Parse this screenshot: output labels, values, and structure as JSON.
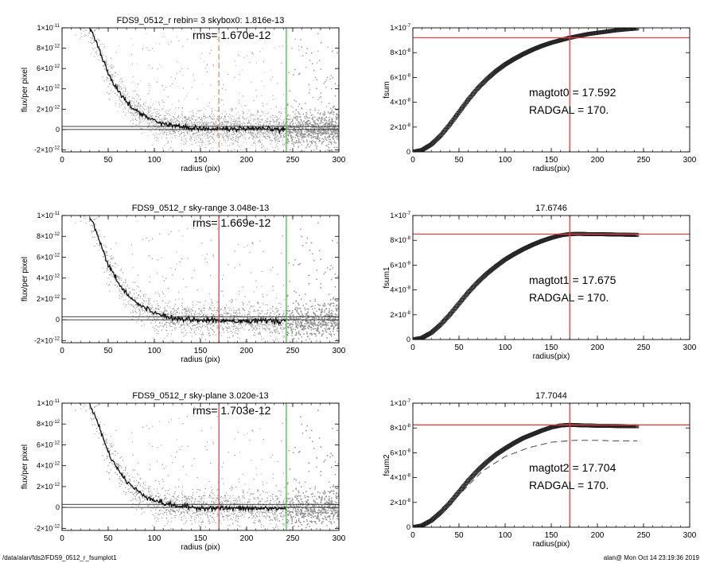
{
  "footer": {
    "path": "/data/alan/fds2/FDS9_0512_r_fsumplot1",
    "stamp": "alan@  Mon Oct 14 23:19:36 2019"
  },
  "colors": {
    "red": "#e24343",
    "green": "#2ecc2e",
    "orange": "#e8923a",
    "scatter": "#8c8c8c",
    "profile": "#111111"
  },
  "chart_data": [
    {
      "type": "scatter",
      "title": "FDS9_0512_r rebin= 3    skybox0:  1.816e-13",
      "annotation": "rms= 1.670e-12",
      "xlabel": "radius (pix)",
      "ylabel": "flux/per pixel",
      "xlim": [
        0,
        300
      ],
      "ylim": [
        -2.2e-12,
        1e-11
      ],
      "xticks": [
        0,
        50,
        100,
        150,
        200,
        250,
        300
      ],
      "yticks": [
        {
          "v": 1e-11,
          "m": "1",
          "e": "-11"
        },
        {
          "v": 8e-12,
          "m": "8",
          "e": "-12"
        },
        {
          "v": 6e-12,
          "m": "6",
          "e": "-12"
        },
        {
          "v": 4e-12,
          "m": "4",
          "e": "-12"
        },
        {
          "v": 2e-12,
          "m": "2",
          "e": "-12"
        },
        {
          "v": 0,
          "m": "0",
          "e": ""
        },
        {
          "v": -2e-12,
          "m": "-2",
          "e": "-12"
        }
      ],
      "profile": [
        [
          30,
          1e-11
        ],
        [
          40,
          8e-12
        ],
        [
          50,
          5.5e-12
        ],
        [
          60,
          3.9e-12
        ],
        [
          70,
          2.7e-12
        ],
        [
          80,
          1.9e-12
        ],
        [
          90,
          1.3e-12
        ],
        [
          100,
          9e-13
        ],
        [
          110,
          6e-13
        ],
        [
          120,
          4e-13
        ],
        [
          130,
          2.5e-13
        ],
        [
          140,
          1.6e-13
        ],
        [
          150,
          1e-13
        ],
        [
          170,
          6e-14
        ],
        [
          200,
          4e-14
        ],
        [
          243,
          3e-14
        ]
      ],
      "hlines": [
        3e-13,
        0
      ],
      "vlines": [
        {
          "x": 170,
          "color": "orange",
          "dashed": true
        },
        {
          "x": 243,
          "color": "green",
          "dashed": false
        }
      ]
    },
    {
      "type": "scatter",
      "title": "FDS9_0512_r sky-range  3.048e-13",
      "annotation": "rms= 1.669e-12",
      "xlabel": "radius (pix)",
      "ylabel": "flux/per pixel",
      "xlim": [
        0,
        300
      ],
      "ylim": [
        -2.2e-12,
        1e-11
      ],
      "xticks": [
        0,
        50,
        100,
        150,
        200,
        250,
        300
      ],
      "yticks": [
        {
          "v": 1e-11,
          "m": "1",
          "e": "-11"
        },
        {
          "v": 8e-12,
          "m": "8",
          "e": "-12"
        },
        {
          "v": 6e-12,
          "m": "6",
          "e": "-12"
        },
        {
          "v": 4e-12,
          "m": "4",
          "e": "-12"
        },
        {
          "v": 2e-12,
          "m": "2",
          "e": "-12"
        },
        {
          "v": 0,
          "m": "0",
          "e": ""
        },
        {
          "v": -2e-12,
          "m": "-2",
          "e": "-12"
        }
      ],
      "profile": [
        [
          30,
          1e-11
        ],
        [
          40,
          7.8e-12
        ],
        [
          50,
          5.3e-12
        ],
        [
          60,
          3.7e-12
        ],
        [
          70,
          2.5e-12
        ],
        [
          80,
          1.7e-12
        ],
        [
          90,
          1.1e-12
        ],
        [
          100,
          7e-13
        ],
        [
          110,
          4e-13
        ],
        [
          120,
          2e-13
        ],
        [
          130,
          1e-13
        ],
        [
          140,
          2e-14
        ],
        [
          150,
          -4e-14
        ],
        [
          170,
          -8e-14
        ],
        [
          200,
          -1e-13
        ],
        [
          243,
          -1.1e-13
        ]
      ],
      "hlines": [
        3e-13,
        0
      ],
      "vlines": [
        {
          "x": 170,
          "color": "red",
          "dashed": false
        },
        {
          "x": 243,
          "color": "green",
          "dashed": false
        }
      ]
    },
    {
      "type": "scatter",
      "title": "FDS9_0512_r sky-plane  3.020e-13",
      "annotation": "rms= 1.703e-12",
      "xlabel": "radius (pix)",
      "ylabel": "flux/per pixel",
      "xlim": [
        0,
        300
      ],
      "ylim": [
        -2.2e-12,
        1e-11
      ],
      "xticks": [
        0,
        50,
        100,
        150,
        200,
        250,
        300
      ],
      "yticks": [
        {
          "v": 1e-11,
          "m": "1",
          "e": "-11"
        },
        {
          "v": 8e-12,
          "m": "8",
          "e": "-12"
        },
        {
          "v": 6e-12,
          "m": "6",
          "e": "-12"
        },
        {
          "v": 4e-12,
          "m": "4",
          "e": "-12"
        },
        {
          "v": 2e-12,
          "m": "2",
          "e": "-12"
        },
        {
          "v": 0,
          "m": "0",
          "e": ""
        },
        {
          "v": -2e-12,
          "m": "-2",
          "e": "-12"
        }
      ],
      "profile": [
        [
          30,
          1e-11
        ],
        [
          40,
          7.8e-12
        ],
        [
          50,
          5.3e-12
        ],
        [
          60,
          3.7e-12
        ],
        [
          70,
          2.5e-12
        ],
        [
          80,
          1.7e-12
        ],
        [
          90,
          1.1e-12
        ],
        [
          100,
          7e-13
        ],
        [
          110,
          4e-13
        ],
        [
          120,
          2e-13
        ],
        [
          130,
          1e-13
        ],
        [
          140,
          2e-14
        ],
        [
          150,
          -4e-14
        ],
        [
          170,
          -8e-14
        ],
        [
          200,
          -1e-13
        ],
        [
          243,
          -1.1e-13
        ]
      ],
      "hlines": [
        3e-13,
        0
      ],
      "vlines": [
        {
          "x": 170,
          "color": "red",
          "dashed": false
        },
        {
          "x": 243,
          "color": "green",
          "dashed": false
        }
      ]
    },
    {
      "type": "line",
      "title": "",
      "xlabel": "radius(pix)",
      "ylabel": "fsum",
      "xlim": [
        0,
        300
      ],
      "ylim": [
        0,
        1e-07
      ],
      "xticks": [
        0,
        50,
        100,
        150,
        200,
        250,
        300
      ],
      "yticks": [
        {
          "v": 1e-07,
          "m": "1",
          "e": "-7"
        },
        {
          "v": 8e-08,
          "m": "8",
          "e": "-8"
        },
        {
          "v": 6e-08,
          "m": "6",
          "e": "-8"
        },
        {
          "v": 4e-08,
          "m": "4",
          "e": "-8"
        },
        {
          "v": 2e-08,
          "m": "2",
          "e": "-8"
        },
        {
          "v": 0,
          "m": "0",
          "e": ""
        }
      ],
      "curve": [
        [
          0,
          0
        ],
        [
          10,
          1.5e-09
        ],
        [
          20,
          6e-09
        ],
        [
          30,
          1.3e-08
        ],
        [
          40,
          2.2e-08
        ],
        [
          50,
          3.2e-08
        ],
        [
          60,
          4.2e-08
        ],
        [
          70,
          5.1e-08
        ],
        [
          80,
          5.85e-08
        ],
        [
          90,
          6.5e-08
        ],
        [
          100,
          7.05e-08
        ],
        [
          110,
          7.5e-08
        ],
        [
          120,
          7.9e-08
        ],
        [
          130,
          8.25e-08
        ],
        [
          140,
          8.55e-08
        ],
        [
          150,
          8.8e-08
        ],
        [
          160,
          9e-08
        ],
        [
          170,
          9.2e-08
        ],
        [
          180,
          9.35e-08
        ],
        [
          190,
          9.5e-08
        ],
        [
          200,
          9.6e-08
        ],
        [
          210,
          9.7e-08
        ],
        [
          220,
          9.8e-08
        ],
        [
          230,
          9.87e-08
        ],
        [
          243,
          9.95e-08
        ]
      ],
      "dashed_curve": [],
      "hline": 9.2e-08,
      "vline": 170,
      "text1": "magtot0 =  17.592",
      "text2": "RADGAL =    170."
    },
    {
      "type": "line",
      "title": "17.6746",
      "xlabel": "radius(pix)",
      "ylabel": "fsum1",
      "xlim": [
        0,
        300
      ],
      "ylim": [
        0,
        1e-07
      ],
      "xticks": [
        0,
        50,
        100,
        150,
        200,
        250,
        300
      ],
      "yticks": [
        {
          "v": 1e-07,
          "m": "1",
          "e": "-7"
        },
        {
          "v": 8e-08,
          "m": "8",
          "e": "-8"
        },
        {
          "v": 6e-08,
          "m": "6",
          "e": "-8"
        },
        {
          "v": 4e-08,
          "m": "4",
          "e": "-8"
        },
        {
          "v": 2e-08,
          "m": "2",
          "e": "-8"
        },
        {
          "v": 0,
          "m": "0",
          "e": ""
        }
      ],
      "curve": [
        [
          0,
          0
        ],
        [
          10,
          1.4e-09
        ],
        [
          20,
          5.5e-09
        ],
        [
          30,
          1.2e-08
        ],
        [
          40,
          2e-08
        ],
        [
          50,
          2.9e-08
        ],
        [
          60,
          3.8e-08
        ],
        [
          70,
          4.6e-08
        ],
        [
          80,
          5.3e-08
        ],
        [
          90,
          5.9e-08
        ],
        [
          100,
          6.45e-08
        ],
        [
          110,
          6.9e-08
        ],
        [
          120,
          7.3e-08
        ],
        [
          130,
          7.65e-08
        ],
        [
          140,
          7.95e-08
        ],
        [
          150,
          8.2e-08
        ],
        [
          160,
          8.4e-08
        ],
        [
          170,
          8.5e-08
        ],
        [
          180,
          8.52e-08
        ],
        [
          190,
          8.5e-08
        ],
        [
          200,
          8.5e-08
        ],
        [
          210,
          8.48e-08
        ],
        [
          220,
          8.47e-08
        ],
        [
          230,
          8.45e-08
        ],
        [
          243,
          8.44e-08
        ]
      ],
      "dashed_curve": [],
      "hline": 8.5e-08,
      "vline": 170,
      "text1": "magtot1 =  17.675",
      "text2": "RADGAL =    170."
    },
    {
      "type": "line",
      "title": "17.7044",
      "xlabel": "radius(pix)",
      "ylabel": "fsum2",
      "xlim": [
        0,
        300
      ],
      "ylim": [
        0,
        1e-07
      ],
      "xticks": [
        0,
        50,
        100,
        150,
        200,
        250,
        300
      ],
      "yticks": [
        {
          "v": 1e-07,
          "m": "1",
          "e": "-7"
        },
        {
          "v": 8e-08,
          "m": "8",
          "e": "-8"
        },
        {
          "v": 6e-08,
          "m": "6",
          "e": "-8"
        },
        {
          "v": 4e-08,
          "m": "4",
          "e": "-8"
        },
        {
          "v": 2e-08,
          "m": "2",
          "e": "-8"
        },
        {
          "v": 0,
          "m": "0",
          "e": ""
        }
      ],
      "curve": [
        [
          0,
          0
        ],
        [
          10,
          1.4e-09
        ],
        [
          20,
          5.4e-09
        ],
        [
          30,
          1.18e-08
        ],
        [
          40,
          1.95e-08
        ],
        [
          50,
          2.85e-08
        ],
        [
          60,
          3.75e-08
        ],
        [
          70,
          4.55e-08
        ],
        [
          80,
          5.25e-08
        ],
        [
          90,
          5.85e-08
        ],
        [
          100,
          6.35e-08
        ],
        [
          110,
          6.8e-08
        ],
        [
          120,
          7.2e-08
        ],
        [
          130,
          7.5e-08
        ],
        [
          140,
          7.8e-08
        ],
        [
          150,
          8.05e-08
        ],
        [
          160,
          8.2e-08
        ],
        [
          170,
          8.25e-08
        ],
        [
          180,
          8.22e-08
        ],
        [
          190,
          8.2e-08
        ],
        [
          200,
          8.18e-08
        ],
        [
          210,
          8.17e-08
        ],
        [
          220,
          8.16e-08
        ],
        [
          230,
          8.15e-08
        ],
        [
          243,
          8.14e-08
        ]
      ],
      "dashed_curve": [
        [
          30,
          1.1e-08
        ],
        [
          50,
          2.6e-08
        ],
        [
          75,
          4.5e-08
        ],
        [
          100,
          5.7e-08
        ],
        [
          125,
          6.4e-08
        ],
        [
          150,
          6.85e-08
        ],
        [
          175,
          7e-08
        ],
        [
          200,
          7e-08
        ],
        [
          225,
          6.95e-08
        ],
        [
          243,
          6.95e-08
        ]
      ],
      "hline": 8.25e-08,
      "vline": 170,
      "text1": "magtot2 =  17.704",
      "text2": "RADGAL =    170."
    }
  ]
}
